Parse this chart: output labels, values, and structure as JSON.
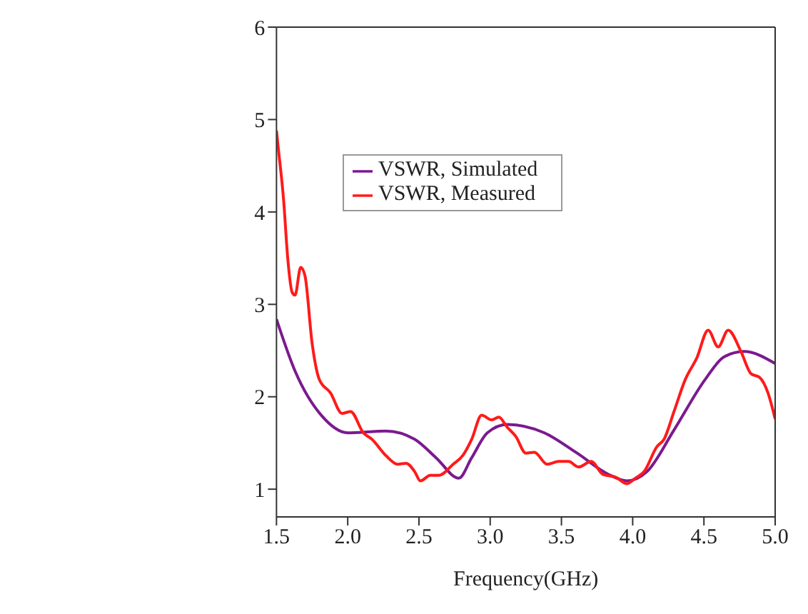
{
  "chart_data": {
    "type": "line",
    "xlabel": "Frequency(GHz)",
    "xlim": [
      1.5,
      5.0
    ],
    "xticks": [
      {
        "value": 1.5,
        "label": "1.5"
      },
      {
        "value": 2.0,
        "label": "2.0"
      },
      {
        "value": 2.5,
        "label": "2.5"
      },
      {
        "value": 3.0,
        "label": "3.0"
      },
      {
        "value": 3.5,
        "label": "3.5"
      },
      {
        "value": 4.0,
        "label": "4.0"
      },
      {
        "value": 4.5,
        "label": "4.5"
      },
      {
        "value": 5.0,
        "label": "5.0"
      }
    ],
    "ylim": [
      0.7,
      6
    ],
    "yticks": [
      1,
      2,
      3,
      4,
      5,
      6
    ],
    "grid": false,
    "legend": "top",
    "marker": "none",
    "line_style": "solid",
    "series": [
      {
        "name": "VSWR, Simulated",
        "color": "#7b1a8f",
        "x": [
          1.5,
          1.63,
          1.82,
          2.0,
          2.27,
          2.47,
          2.62,
          2.78,
          2.87,
          2.98,
          3.12,
          3.38,
          3.61,
          3.83,
          3.96,
          4.1,
          4.29,
          4.51,
          4.64,
          4.78,
          5.0
        ],
        "values": [
          2.84,
          2.28,
          1.79,
          1.61,
          1.63,
          1.54,
          1.34,
          1.12,
          1.34,
          1.61,
          1.7,
          1.61,
          1.39,
          1.16,
          1.09,
          1.19,
          1.64,
          2.19,
          2.43,
          2.49,
          2.36
        ]
      },
      {
        "name": "VSWR, Measured",
        "color": "#ff1a1a",
        "x": [
          1.5,
          1.51,
          1.55,
          1.58,
          1.61,
          1.63,
          1.67,
          1.7,
          1.75,
          1.8,
          1.88,
          1.96,
          2.02,
          2.11,
          2.17,
          2.27,
          2.35,
          2.41,
          2.47,
          2.51,
          2.58,
          2.64,
          2.74,
          2.81,
          2.87,
          2.94,
          3.01,
          3.06,
          3.12,
          3.18,
          3.25,
          3.31,
          3.4,
          3.48,
          3.55,
          3.62,
          3.71,
          3.79,
          3.88,
          3.96,
          4.02,
          4.08,
          4.17,
          4.22,
          4.29,
          4.37,
          4.45,
          4.53,
          4.6,
          4.67,
          4.76,
          4.83,
          4.89,
          4.95,
          5.0
        ],
        "values": [
          4.88,
          4.73,
          4.13,
          3.48,
          3.13,
          3.1,
          3.4,
          3.31,
          2.58,
          2.19,
          2.04,
          1.82,
          1.84,
          1.61,
          1.54,
          1.36,
          1.27,
          1.28,
          1.19,
          1.09,
          1.15,
          1.15,
          1.27,
          1.37,
          1.54,
          1.8,
          1.75,
          1.78,
          1.67,
          1.57,
          1.39,
          1.4,
          1.27,
          1.3,
          1.3,
          1.24,
          1.3,
          1.16,
          1.13,
          1.06,
          1.12,
          1.19,
          1.46,
          1.54,
          1.84,
          2.19,
          2.42,
          2.72,
          2.54,
          2.72,
          2.49,
          2.25,
          2.21,
          2.04,
          1.76
        ]
      }
    ]
  }
}
